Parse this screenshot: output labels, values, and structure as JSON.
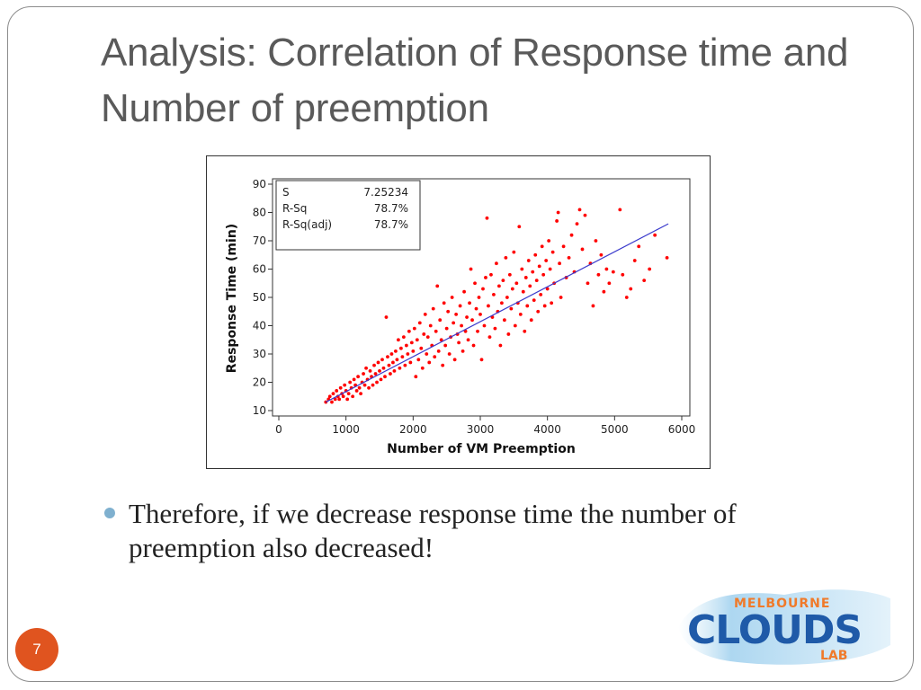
{
  "slide": {
    "title": "Analysis: Correlation of Response time and Number of preemption",
    "bullet_text": "Therefore, if we decrease response time the number of preemption also decreased!",
    "page_number": "7"
  },
  "logo": {
    "line1": "MELBOURNE",
    "line2": "CLOUDS",
    "line3": "LAB"
  },
  "colors": {
    "accent_orange": "#e0541f",
    "bullet_blue": "#7fb0cf",
    "points_red": "#ff0000",
    "fit_line_blue": "#3b3bcc"
  },
  "chart_data": {
    "type": "scatter",
    "xlabel": "Number of VM Preemption",
    "ylabel": "Response Time (min)",
    "xlim": [
      0,
      6000
    ],
    "ylim": [
      10,
      90
    ],
    "x_ticks": [
      "0",
      "1000",
      "2000",
      "3000",
      "4000",
      "5000",
      "6000"
    ],
    "y_ticks": [
      "10",
      "20",
      "30",
      "40",
      "50",
      "60",
      "70",
      "80",
      "90"
    ],
    "grid": false,
    "legend_position": "top-left",
    "stats": [
      {
        "label": "S",
        "value": "7.25234"
      },
      {
        "label": "R-Sq",
        "value": "78.7%"
      },
      {
        "label": "R-Sq(adj)",
        "value": "78.7%"
      }
    ],
    "fit_line": {
      "x": [
        700,
        5800
      ],
      "y": [
        13,
        76
      ]
    },
    "series": [
      {
        "points": [
          [
            700,
            13
          ],
          [
            740,
            14
          ],
          [
            760,
            15
          ],
          [
            790,
            13
          ],
          [
            810,
            16
          ],
          [
            840,
            14
          ],
          [
            860,
            17
          ],
          [
            880,
            15
          ],
          [
            900,
            14
          ],
          [
            920,
            18
          ],
          [
            940,
            16
          ],
          [
            960,
            15
          ],
          [
            980,
            19
          ],
          [
            1000,
            17
          ],
          [
            1020,
            14
          ],
          [
            1040,
            16
          ],
          [
            1060,
            20
          ],
          [
            1080,
            18
          ],
          [
            1100,
            15
          ],
          [
            1120,
            21
          ],
          [
            1140,
            19
          ],
          [
            1160,
            17
          ],
          [
            1180,
            22
          ],
          [
            1200,
            18
          ],
          [
            1220,
            16
          ],
          [
            1240,
            20
          ],
          [
            1260,
            23
          ],
          [
            1280,
            19
          ],
          [
            1300,
            25
          ],
          [
            1320,
            21
          ],
          [
            1340,
            18
          ],
          [
            1360,
            24
          ],
          [
            1380,
            22
          ],
          [
            1400,
            19
          ],
          [
            1420,
            26
          ],
          [
            1440,
            23
          ],
          [
            1460,
            20
          ],
          [
            1480,
            27
          ],
          [
            1500,
            24
          ],
          [
            1520,
            21
          ],
          [
            1540,
            28
          ],
          [
            1560,
            25
          ],
          [
            1580,
            22
          ],
          [
            1600,
            43
          ],
          [
            1620,
            29
          ],
          [
            1640,
            26
          ],
          [
            1660,
            23
          ],
          [
            1680,
            30
          ],
          [
            1700,
            27
          ],
          [
            1720,
            24
          ],
          [
            1740,
            31
          ],
          [
            1760,
            28
          ],
          [
            1780,
            35
          ],
          [
            1800,
            25
          ],
          [
            1820,
            32
          ],
          [
            1840,
            29
          ],
          [
            1860,
            36
          ],
          [
            1880,
            26
          ],
          [
            1900,
            33
          ],
          [
            1920,
            30
          ],
          [
            1940,
            38
          ],
          [
            1960,
            27
          ],
          [
            1980,
            34
          ],
          [
            2000,
            31
          ],
          [
            2020,
            39
          ],
          [
            2040,
            22
          ],
          [
            2060,
            35
          ],
          [
            2080,
            28
          ],
          [
            2100,
            41
          ],
          [
            2120,
            32
          ],
          [
            2140,
            25
          ],
          [
            2160,
            37
          ],
          [
            2180,
            44
          ],
          [
            2200,
            30
          ],
          [
            2220,
            36
          ],
          [
            2240,
            27
          ],
          [
            2260,
            40
          ],
          [
            2280,
            33
          ],
          [
            2300,
            46
          ],
          [
            2320,
            29
          ],
          [
            2340,
            38
          ],
          [
            2360,
            54
          ],
          [
            2380,
            31
          ],
          [
            2400,
            42
          ],
          [
            2420,
            35
          ],
          [
            2440,
            26
          ],
          [
            2460,
            48
          ],
          [
            2480,
            33
          ],
          [
            2500,
            39
          ],
          [
            2520,
            45
          ],
          [
            2540,
            30
          ],
          [
            2560,
            36
          ],
          [
            2580,
            50
          ],
          [
            2600,
            41
          ],
          [
            2620,
            28
          ],
          [
            2640,
            44
          ],
          [
            2660,
            37
          ],
          [
            2680,
            34
          ],
          [
            2700,
            47
          ],
          [
            2720,
            40
          ],
          [
            2740,
            31
          ],
          [
            2760,
            52
          ],
          [
            2780,
            38
          ],
          [
            2800,
            43
          ],
          [
            2820,
            35
          ],
          [
            2840,
            48
          ],
          [
            2860,
            60
          ],
          [
            2880,
            42
          ],
          [
            2900,
            33
          ],
          [
            2920,
            55
          ],
          [
            2940,
            46
          ],
          [
            2960,
            38
          ],
          [
            2980,
            50
          ],
          [
            3000,
            44
          ],
          [
            3020,
            28
          ],
          [
            3040,
            53
          ],
          [
            3060,
            40
          ],
          [
            3080,
            57
          ],
          [
            3100,
            78
          ],
          [
            3120,
            47
          ],
          [
            3140,
            36
          ],
          [
            3160,
            58
          ],
          [
            3180,
            43
          ],
          [
            3200,
            51
          ],
          [
            3220,
            39
          ],
          [
            3240,
            62
          ],
          [
            3260,
            45
          ],
          [
            3280,
            54
          ],
          [
            3300,
            33
          ],
          [
            3320,
            48
          ],
          [
            3340,
            56
          ],
          [
            3360,
            42
          ],
          [
            3380,
            64
          ],
          [
            3400,
            50
          ],
          [
            3420,
            37
          ],
          [
            3440,
            58
          ],
          [
            3460,
            46
          ],
          [
            3480,
            53
          ],
          [
            3500,
            66
          ],
          [
            3520,
            40
          ],
          [
            3540,
            55
          ],
          [
            3560,
            48
          ],
          [
            3580,
            75
          ],
          [
            3600,
            44
          ],
          [
            3620,
            60
          ],
          [
            3640,
            52
          ],
          [
            3660,
            38
          ],
          [
            3680,
            57
          ],
          [
            3700,
            47
          ],
          [
            3720,
            63
          ],
          [
            3740,
            54
          ],
          [
            3760,
            42
          ],
          [
            3780,
            59
          ],
          [
            3800,
            49
          ],
          [
            3820,
            65
          ],
          [
            3840,
            56
          ],
          [
            3860,
            45
          ],
          [
            3880,
            61
          ],
          [
            3900,
            51
          ],
          [
            3920,
            68
          ],
          [
            3940,
            58
          ],
          [
            3960,
            47
          ],
          [
            3980,
            63
          ],
          [
            4000,
            53
          ],
          [
            4020,
            70
          ],
          [
            4040,
            60
          ],
          [
            4060,
            48
          ],
          [
            4080,
            66
          ],
          [
            4100,
            55
          ],
          [
            4140,
            77
          ],
          [
            4160,
            80
          ],
          [
            4180,
            62
          ],
          [
            4200,
            50
          ],
          [
            4240,
            68
          ],
          [
            4280,
            57
          ],
          [
            4320,
            64
          ],
          [
            4360,
            72
          ],
          [
            4400,
            59
          ],
          [
            4440,
            76
          ],
          [
            4480,
            81
          ],
          [
            4520,
            67
          ],
          [
            4560,
            79
          ],
          [
            4600,
            55
          ],
          [
            4640,
            62
          ],
          [
            4680,
            47
          ],
          [
            4720,
            70
          ],
          [
            4760,
            58
          ],
          [
            4800,
            65
          ],
          [
            4840,
            52
          ],
          [
            4880,
            60
          ],
          [
            4920,
            55
          ],
          [
            4980,
            59
          ],
          [
            5080,
            81
          ],
          [
            5120,
            58
          ],
          [
            5180,
            50
          ],
          [
            5240,
            53
          ],
          [
            5300,
            63
          ],
          [
            5360,
            68
          ],
          [
            5440,
            56
          ],
          [
            5520,
            60
          ],
          [
            5600,
            72
          ],
          [
            5780,
            64
          ]
        ]
      }
    ]
  }
}
